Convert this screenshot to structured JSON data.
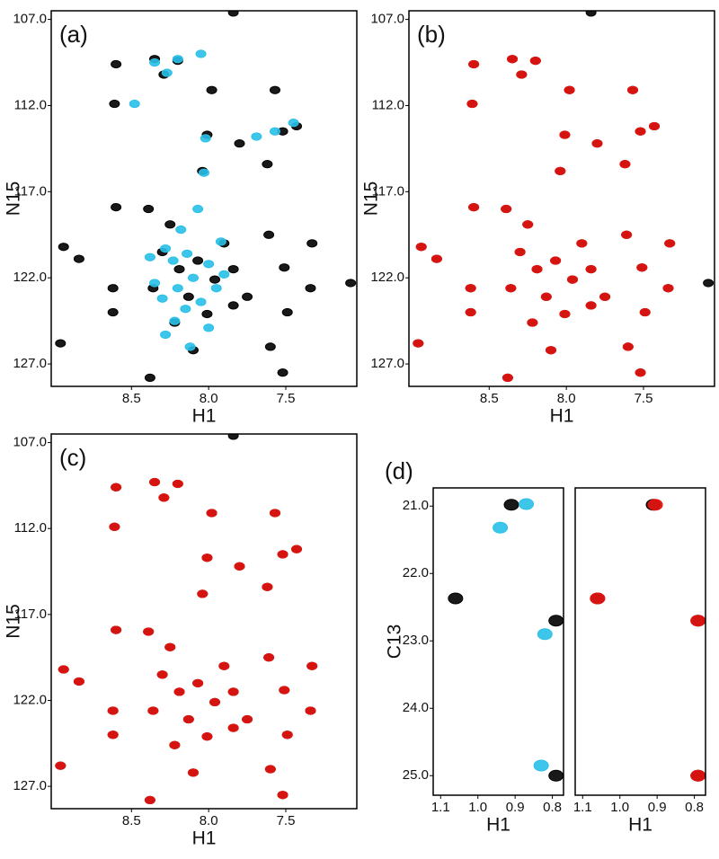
{
  "chart_data": [
    {
      "type": "scatter",
      "panel_label": "(a)",
      "xlabel": "H1",
      "ylabel": "N15",
      "xlim": [
        9.02,
        7.04
      ],
      "ylim": [
        128.3,
        106.5
      ],
      "xticks": [
        8.5,
        {
          "value": 8,
          "label": "8.0"
        },
        7.5
      ],
      "yticks": [
        {
          "value": 107,
          "label": "107.0"
        },
        {
          "value": 112,
          "label": "112.0"
        },
        {
          "value": 117,
          "label": "117.0"
        },
        {
          "value": 122,
          "label": "122.0"
        },
        {
          "value": 127,
          "label": "127.0"
        }
      ],
      "series": [
        {
          "color": "#000000",
          "x": [
            7.84,
            8.6,
            8.35,
            8.2,
            8.61,
            8.29,
            7.57,
            7.98,
            7.43,
            7.52,
            8.01,
            7.8,
            7.62,
            8.04,
            8.6,
            8.39,
            8.94,
            8.84,
            7.33,
            7.61,
            7.51,
            8.62,
            7.34,
            7.08,
            8.62,
            7.49,
            8.96,
            7.6,
            8.38,
            7.52,
            8.3,
            8.19,
            8.07,
            7.96,
            7.84,
            8.13,
            8.36,
            8.01,
            7.9,
            8.22,
            7.84,
            8.1,
            7.75,
            8.25
          ],
          "values": [
            106.6,
            109.6,
            109.3,
            109.4,
            111.9,
            110.2,
            111.1,
            111.1,
            113.2,
            113.5,
            113.7,
            114.2,
            115.4,
            115.8,
            117.9,
            118.0,
            120.2,
            120.9,
            120.0,
            119.5,
            121.4,
            122.6,
            122.6,
            122.3,
            124.0,
            124.0,
            125.8,
            126.0,
            127.8,
            127.5,
            120.5,
            121.5,
            121.0,
            122.1,
            121.5,
            123.1,
            122.6,
            124.1,
            120.0,
            124.6,
            123.6,
            126.2,
            123.1,
            118.9
          ]
        },
        {
          "color": "#29c0e8",
          "x": [
            8.35,
            8.2,
            8.05,
            8.48,
            8.27,
            7.45,
            7.57,
            7.69,
            8.02,
            8.03,
            8.07,
            8.38,
            8.28,
            8.23,
            8.14,
            8.0,
            7.9,
            8.35,
            8.2,
            8.1,
            7.95,
            8.3,
            8.05,
            8.15,
            8.22,
            8.0,
            8.28,
            7.92,
            8.12,
            8.18
          ],
          "values": [
            109.5,
            109.3,
            109.0,
            111.9,
            110.1,
            113.0,
            113.5,
            113.8,
            113.9,
            115.9,
            118.0,
            120.8,
            120.3,
            121.0,
            120.6,
            121.2,
            121.8,
            122.3,
            122.6,
            122.0,
            122.6,
            123.2,
            123.4,
            123.8,
            124.5,
            124.9,
            125.3,
            119.9,
            126.0,
            119.2
          ]
        }
      ]
    },
    {
      "type": "scatter",
      "panel_label": "(b)",
      "xlabel": "H1",
      "ylabel": "N15",
      "xlim": [
        9.02,
        7.04
      ],
      "ylim": [
        128.3,
        106.5
      ],
      "xticks": [
        8.5,
        {
          "value": 8,
          "label": "8.0"
        },
        7.5
      ],
      "yticks": [
        {
          "value": 107,
          "label": "107.0"
        },
        {
          "value": 112,
          "label": "112.0"
        },
        {
          "value": 117,
          "label": "117.0"
        },
        {
          "value": 122,
          "label": "122.0"
        },
        {
          "value": 127,
          "label": "127.0"
        }
      ],
      "series": [
        {
          "color": "#000000",
          "x": [
            7.84,
            8.6,
            8.35,
            8.2,
            8.61,
            8.29,
            7.57,
            7.98,
            7.43,
            7.52,
            8.01,
            7.8,
            7.62,
            8.04,
            8.6,
            8.39,
            8.94,
            8.84,
            7.33,
            7.61,
            7.51,
            8.62,
            7.34,
            7.08,
            8.62,
            7.49,
            8.96,
            7.6,
            8.38,
            7.52,
            8.3,
            8.19,
            8.07,
            7.96,
            7.84,
            8.13,
            8.36,
            8.01,
            7.9,
            8.22,
            7.84,
            8.1,
            7.75,
            8.25
          ],
          "values": [
            106.6,
            109.6,
            109.3,
            109.4,
            111.9,
            110.2,
            111.1,
            111.1,
            113.2,
            113.5,
            113.7,
            114.2,
            115.4,
            115.8,
            117.9,
            118.0,
            120.2,
            120.9,
            120.0,
            119.5,
            121.4,
            122.6,
            122.6,
            122.3,
            124.0,
            124.0,
            125.8,
            126.0,
            127.8,
            127.5,
            120.5,
            121.5,
            121.0,
            122.1,
            121.5,
            123.1,
            122.6,
            124.1,
            120.0,
            124.6,
            123.6,
            126.2,
            123.1,
            118.9
          ]
        },
        {
          "color": "#e8140f",
          "x": [
            8.6,
            8.35,
            8.2,
            8.61,
            8.29,
            7.57,
            7.98,
            7.43,
            7.52,
            8.01,
            7.8,
            7.62,
            8.04,
            8.6,
            8.39,
            8.94,
            8.84,
            7.33,
            7.61,
            7.51,
            8.62,
            7.34,
            8.62,
            7.49,
            8.96,
            7.6,
            8.38,
            7.52,
            8.3,
            8.19,
            8.07,
            7.96,
            7.84,
            8.13,
            8.36,
            8.01,
            7.9,
            8.22,
            7.84,
            8.1,
            7.75,
            8.25
          ],
          "values": [
            109.6,
            109.3,
            109.4,
            111.9,
            110.2,
            111.1,
            111.1,
            113.2,
            113.5,
            113.7,
            114.2,
            115.4,
            115.8,
            117.9,
            118.0,
            120.2,
            120.9,
            120.0,
            119.5,
            121.4,
            122.6,
            122.6,
            124.0,
            124.0,
            125.8,
            126.0,
            127.8,
            127.5,
            120.5,
            121.5,
            121.0,
            122.1,
            121.5,
            123.1,
            122.6,
            124.1,
            120.0,
            124.6,
            123.6,
            126.2,
            123.1,
            118.9
          ]
        }
      ]
    },
    {
      "type": "scatter",
      "panel_label": "(c)",
      "xlabel": "H1",
      "ylabel": "N15",
      "xlim": [
        9.02,
        7.04
      ],
      "ylim": [
        128.3,
        106.5
      ],
      "xticks": [
        8.5,
        {
          "value": 8,
          "label": "8.0"
        },
        7.5
      ],
      "yticks": [
        {
          "value": 107,
          "label": "107.0"
        },
        {
          "value": 112,
          "label": "112.0"
        },
        {
          "value": 117,
          "label": "117.0"
        },
        {
          "value": 122,
          "label": "122.0"
        },
        {
          "value": 127,
          "label": "127.0"
        }
      ],
      "series": [
        {
          "color": "#000000",
          "x": [
            7.84,
            8.6,
            8.35,
            8.2,
            8.61,
            8.29,
            7.57,
            7.98,
            7.43,
            7.52,
            8.01,
            7.8,
            7.62,
            8.04,
            8.6,
            8.39,
            8.94,
            8.84,
            7.33,
            7.61,
            7.51,
            8.62,
            7.34,
            8.62,
            7.49,
            8.96,
            7.6,
            8.38,
            7.52,
            8.3,
            8.19,
            8.07,
            7.96,
            7.84,
            8.13,
            8.36,
            8.01,
            7.9,
            8.22,
            7.84,
            8.1,
            7.75,
            8.25
          ],
          "values": [
            106.6,
            109.6,
            109.3,
            109.4,
            111.9,
            110.2,
            111.1,
            111.1,
            113.2,
            113.5,
            113.7,
            114.2,
            115.4,
            115.8,
            117.9,
            118.0,
            120.2,
            120.9,
            120.0,
            119.5,
            121.4,
            122.6,
            122.6,
            124.0,
            124.0,
            125.8,
            126.0,
            127.8,
            127.5,
            120.5,
            121.5,
            121.0,
            122.1,
            121.5,
            123.1,
            122.6,
            124.1,
            120.0,
            124.6,
            123.6,
            126.2,
            123.1,
            118.9
          ]
        },
        {
          "color": "#e8140f",
          "x": [
            8.6,
            8.35,
            8.2,
            8.61,
            8.29,
            7.57,
            7.98,
            7.43,
            7.52,
            8.01,
            7.8,
            7.62,
            8.04,
            8.6,
            8.39,
            8.94,
            8.84,
            7.33,
            7.61,
            7.51,
            8.62,
            7.34,
            8.62,
            7.49,
            8.96,
            7.6,
            8.38,
            7.52,
            8.3,
            8.19,
            8.07,
            7.96,
            7.84,
            8.13,
            8.36,
            8.01,
            7.9,
            8.22,
            7.84,
            8.1,
            7.75,
            8.25
          ],
          "values": [
            109.6,
            109.3,
            109.4,
            111.9,
            110.2,
            111.1,
            111.1,
            113.2,
            113.5,
            113.7,
            114.2,
            115.4,
            115.8,
            117.9,
            118.0,
            120.2,
            120.9,
            120.0,
            119.5,
            121.4,
            122.6,
            122.6,
            124.0,
            124.0,
            125.8,
            126.0,
            127.8,
            127.5,
            120.5,
            121.5,
            121.0,
            122.1,
            121.5,
            123.1,
            122.6,
            124.1,
            120.0,
            124.6,
            123.6,
            126.2,
            123.1,
            118.9
          ]
        }
      ]
    },
    {
      "type": "scatter",
      "panel_label": "(d)",
      "xlabel": "H1",
      "ylabel": "C13",
      "xlim": [
        1.12,
        0.77
      ],
      "ylim": [
        25.29,
        20.73
      ],
      "xticks": [
        1.1,
        {
          "value": 1,
          "label": "1.0"
        },
        0.9,
        0.8
      ],
      "yticks": [
        {
          "value": 21,
          "label": "21.0"
        },
        {
          "value": 22,
          "label": "22.0"
        },
        {
          "value": 23,
          "label": "23.0"
        },
        {
          "value": 24,
          "label": "24.0"
        },
        {
          "value": 25,
          "label": "25.0"
        }
      ],
      "series": [
        {
          "color": "#000000",
          "x": [
            0.91,
            1.06,
            0.79,
            0.79
          ],
          "values": [
            20.98,
            22.37,
            22.7,
            25.0
          ]
        },
        {
          "color": "#29c0e8",
          "x": [
            0.87,
            0.94,
            0.82,
            0.83
          ],
          "values": [
            20.97,
            21.32,
            22.9,
            24.85
          ]
        }
      ]
    },
    {
      "type": "scatter",
      "xlabel": "H1",
      "xlim": [
        1.12,
        0.77
      ],
      "ylim": [
        25.29,
        20.73
      ],
      "xticks": [
        1.1,
        {
          "value": 1,
          "label": "1.0"
        },
        0.9,
        0.8
      ],
      "series": [
        {
          "color": "#000000",
          "x": [
            0.91,
            1.06,
            0.79,
            0.79
          ],
          "values": [
            20.98,
            22.37,
            22.7,
            25.0
          ]
        },
        {
          "color": "#e8140f",
          "x": [
            0.905,
            1.06,
            0.79,
            0.79
          ],
          "values": [
            20.98,
            22.37,
            22.7,
            25.0
          ]
        }
      ]
    }
  ]
}
